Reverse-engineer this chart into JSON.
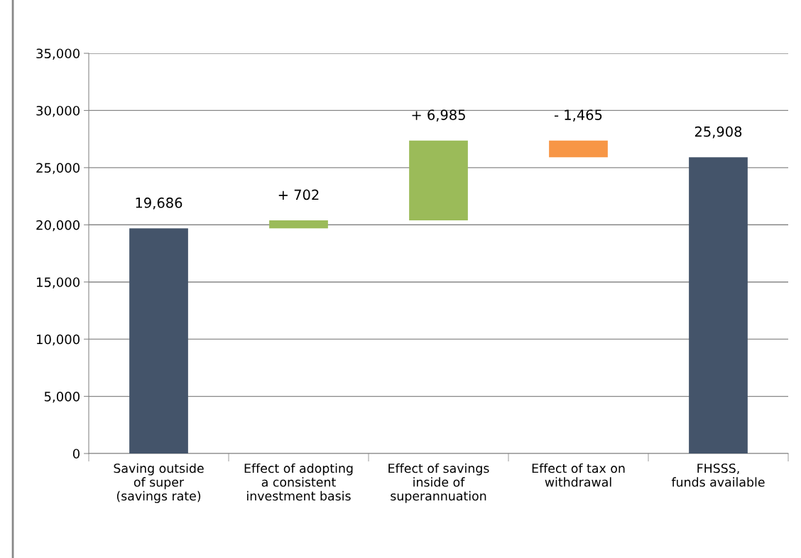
{
  "chart_data": {
    "type": "bar",
    "categories": [
      "Saving outside\nof super\n(savings rate)",
      "Effect of adopting\na consistent\ninvestment basis",
      "Effect of savings\ninside of\nsuperannuation",
      "Effect of tax on\nwithdrawal",
      "FHSSS,\nfunds available"
    ],
    "values": [
      19686,
      702,
      6985,
      -1465,
      25908
    ],
    "base": [
      0,
      19686,
      20388,
      27373,
      0
    ],
    "colors": [
      "#44546a",
      "#9bbb59",
      "#9bbb59",
      "#f79646",
      "#44546a"
    ],
    "value_labels": [
      "19,686",
      "+ 702",
      "+ 6,985",
      "- 1,465",
      "25,908"
    ],
    "ylim": [
      0,
      35000
    ],
    "yticks": [
      {
        "value": 0,
        "label": "0"
      },
      {
        "value": 5000,
        "label": "5,000"
      },
      {
        "value": 10000,
        "label": "10,000"
      },
      {
        "value": 15000,
        "label": "15,000"
      },
      {
        "value": 20000,
        "label": "20,000"
      },
      {
        "value": 25000,
        "label": "25,000"
      },
      {
        "value": 30000,
        "label": "30,000"
      },
      {
        "value": 35000,
        "label": "35,000"
      }
    ],
    "grid": "y",
    "legend": false
  }
}
